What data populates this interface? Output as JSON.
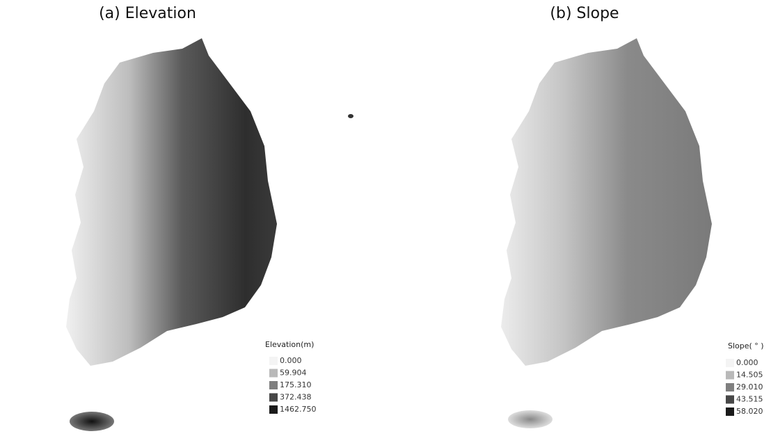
{
  "panels": [
    {
      "title": "(a) Elevation",
      "legend": {
        "title": "Elevation(m)",
        "items": [
          {
            "label": "0.000",
            "color": "#f4f4f4"
          },
          {
            "label": "59.904",
            "color": "#b9b9b9"
          },
          {
            "label": "175.310",
            "color": "#7f7f7f"
          },
          {
            "label": "372.438",
            "color": "#474747"
          },
          {
            "label": "1462.750",
            "color": "#1a1a1a"
          }
        ]
      }
    },
    {
      "title": "(b) Slope",
      "legend": {
        "title": "Slope( ° )",
        "items": [
          {
            "label": "0.000",
            "color": "#f4f4f4"
          },
          {
            "label": "14.505",
            "color": "#b9b9b9"
          },
          {
            "label": "29.010",
            "color": "#7f7f7f"
          },
          {
            "label": "43.515",
            "color": "#474747"
          },
          {
            "label": "58.020",
            "color": "#1a1a1a"
          }
        ]
      }
    }
  ]
}
